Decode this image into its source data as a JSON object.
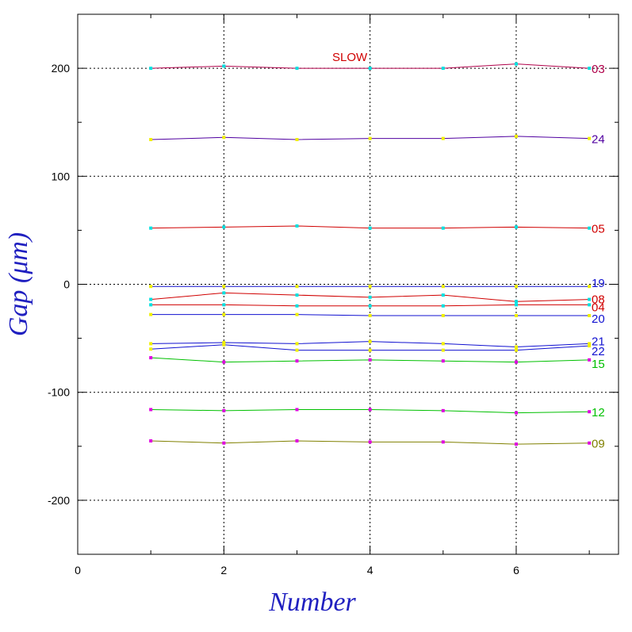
{
  "chart_data": {
    "type": "line",
    "xlabel": "Number",
    "ylabel": "Gap (μm)",
    "xlim": [
      0,
      7.4
    ],
    "ylim": [
      -250,
      250
    ],
    "x_ticks": [
      0,
      2,
      4,
      6
    ],
    "y_ticks": [
      -200,
      -100,
      0,
      100,
      200
    ],
    "x_tick_labels": [
      "0",
      "2",
      "4",
      "6"
    ],
    "y_tick_labels": [
      "-200",
      "-100",
      "0",
      "100",
      "200"
    ],
    "grid": "dotted at major ticks",
    "annotation": "SLOW",
    "x": [
      1,
      2,
      3,
      4,
      5,
      6,
      7
    ],
    "series": [
      {
        "name": "03",
        "color": "#b0004a",
        "marker_color": "#00e0e0",
        "values": [
          200,
          202,
          200,
          200,
          200,
          204,
          200
        ]
      },
      {
        "name": "24",
        "color": "#5000a0",
        "marker_color": "#f0f000",
        "values": [
          134,
          136,
          134,
          135,
          135,
          137,
          135
        ]
      },
      {
        "name": "05",
        "color": "#d00000",
        "marker_color": "#00e0e0",
        "values": [
          52,
          53,
          54,
          52,
          52,
          53,
          52
        ]
      },
      {
        "name": "19",
        "color": "#1010d0",
        "marker_color": "#f0f000",
        "values": [
          -2,
          -2,
          -2,
          -2,
          -2,
          -2,
          -2
        ]
      },
      {
        "name": "08",
        "color": "#d00000",
        "marker_color": "#00e0e0",
        "values": [
          -14,
          -8,
          -10,
          -12,
          -10,
          -16,
          -14
        ]
      },
      {
        "name": "04",
        "color": "#d00000",
        "marker_color": "#00e0e0",
        "values": [
          -19,
          -19,
          -20,
          -20,
          -20,
          -19,
          -19
        ]
      },
      {
        "name": "20",
        "color": "#1010d0",
        "marker_color": "#f0f000",
        "values": [
          -28,
          -28,
          -28,
          -29,
          -29,
          -29,
          -29
        ]
      },
      {
        "name": "21",
        "color": "#1010d0",
        "marker_color": "#f0f000",
        "values": [
          -55,
          -54,
          -55,
          -53,
          -55,
          -58,
          -55
        ]
      },
      {
        "name": "22",
        "color": "#1010d0",
        "marker_color": "#f0f000",
        "values": [
          -60,
          -56,
          -61,
          -61,
          -61,
          -61,
          -57
        ]
      },
      {
        "name": "15",
        "color": "#00c000",
        "marker_color": "#e000e0",
        "values": [
          -68,
          -72,
          -71,
          -70,
          -71,
          -72,
          -70
        ]
      },
      {
        "name": "12",
        "color": "#00c000",
        "marker_color": "#e000e0",
        "values": [
          -116,
          -117,
          -116,
          -116,
          -117,
          -119,
          -118
        ]
      },
      {
        "name": "09",
        "color": "#808000",
        "marker_color": "#e000e0",
        "values": [
          -145,
          -147,
          -145,
          -146,
          -146,
          -148,
          -147
        ]
      }
    ]
  }
}
